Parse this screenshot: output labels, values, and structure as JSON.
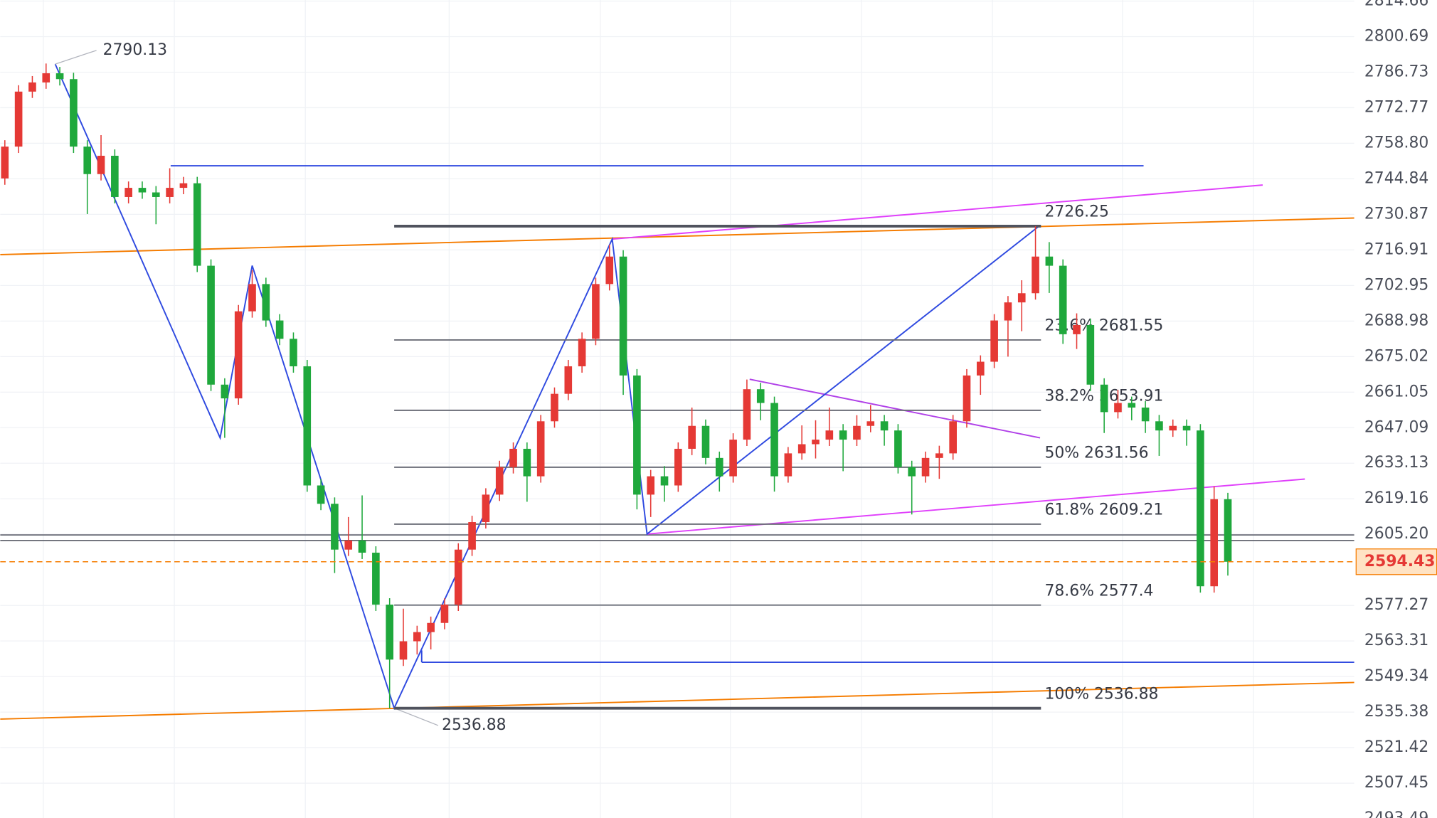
{
  "chart_data": {
    "type": "candlestick",
    "ylim": [
      2493.78,
      2815.08
    ],
    "yticks": [
      2814.66,
      2800.69,
      2786.73,
      2772.77,
      {
        "value": 2758.8,
        "label": "2758.80"
      },
      2744.84,
      2730.87,
      2716.91,
      2702.95,
      2688.98,
      2675.02,
      2661.05,
      2647.09,
      2633.13,
      2619.16,
      {
        "value": 2605.2,
        "label": "2605.20"
      },
      2577.27,
      2563.31,
      2549.34,
      2535.38,
      2521.42,
      2507.45,
      2493.49
    ],
    "grid": true,
    "up_color": "#e53935",
    "down_color": "#1fa83c",
    "open": [
      2745.0,
      2757.5,
      2779.1,
      2782.7,
      2786.3,
      2784.0,
      2757.5,
      2746.7,
      2753.9,
      2737.7,
      2741.3,
      2739.5,
      2737.7,
      2741.3,
      2743.1,
      2710.7,
      2664.0,
      2658.6,
      2692.8,
      2703.5,
      2689.2,
      2682.0,
      2671.2,
      2624.4,
      2617.2,
      2599.2,
      2602.8,
      2598.0,
      2577.6,
      2556.0,
      2563.2,
      2566.8,
      2570.4,
      2577.6,
      2599.2,
      2610.0,
      2620.8,
      2631.6,
      2638.8,
      2628.0,
      2649.6,
      2660.4,
      2671.2,
      2682.0,
      2703.5,
      2714.3,
      2667.6,
      2620.8,
      2628.0,
      2624.4,
      2638.8,
      2647.8,
      2635.2,
      2628.0,
      2642.4,
      2662.2,
      2656.8,
      2628.0,
      2637.0,
      2640.6,
      2642.4,
      2646.0,
      2642.4,
      2647.8,
      2649.6,
      2646.0,
      2631.6,
      2628.0,
      2635.2,
      2637.0,
      2649.6,
      2667.6,
      2673.0,
      2689.2,
      2696.3,
      2699.9,
      2714.3,
      2710.7,
      2683.8,
      2687.4,
      2664.0,
      2653.2,
      2656.8,
      2655.0,
      2649.6,
      2646.0,
      2647.8,
      2646.0,
      2584.8,
      2619.0
    ],
    "high": [
      2760.0,
      2781.6,
      2785.2,
      2790.13,
      2788.8,
      2786.5,
      2760.0,
      2762.0,
      2756.4,
      2743.8,
      2743.8,
      2742.0,
      2749.0,
      2745.6,
      2745.6,
      2713.2,
      2666.5,
      2695.3,
      2709.0,
      2706.0,
      2691.7,
      2684.5,
      2673.7,
      2626.9,
      2619.7,
      2612.0,
      2620.5,
      2600.5,
      2580.1,
      2576.0,
      2569.3,
      2572.9,
      2580.1,
      2601.7,
      2612.5,
      2623.3,
      2634.1,
      2641.3,
      2641.3,
      2652.1,
      2662.9,
      2673.7,
      2684.5,
      2706.0,
      2719.0,
      2716.8,
      2670.1,
      2630.5,
      2632.0,
      2641.3,
      2655.0,
      2650.3,
      2637.7,
      2644.9,
      2666.0,
      2664.7,
      2659.3,
      2639.5,
      2648.0,
      2650.0,
      2655.0,
      2648.5,
      2652.0,
      2656.0,
      2652.1,
      2648.5,
      2634.1,
      2637.7,
      2640.0,
      2652.1,
      2670.1,
      2675.5,
      2691.7,
      2698.8,
      2705.0,
      2726.25,
      2720.0,
      2713.2,
      2692.0,
      2689.9,
      2666.5,
      2662.0,
      2659.3,
      2657.5,
      2652.1,
      2650.3,
      2650.3,
      2648.5,
      2624.0,
      2621.5
    ],
    "low": [
      2742.5,
      2755.0,
      2776.6,
      2780.2,
      2781.5,
      2755.0,
      2731.0,
      2744.2,
      2735.2,
      2735.2,
      2737.0,
      2727.0,
      2735.2,
      2738.8,
      2708.2,
      2661.5,
      2643.1,
      2656.1,
      2690.3,
      2686.7,
      2679.5,
      2668.7,
      2621.9,
      2614.7,
      2590.0,
      2596.7,
      2595.5,
      2575.1,
      2536.88,
      2553.5,
      2558.0,
      2560.0,
      2567.9,
      2575.1,
      2596.7,
      2607.5,
      2618.3,
      2629.1,
      2618.0,
      2625.5,
      2647.1,
      2657.9,
      2668.7,
      2679.5,
      2701.0,
      2660.0,
      2615.0,
      2612.0,
      2618.0,
      2621.9,
      2636.3,
      2632.7,
      2622.0,
      2625.5,
      2639.9,
      2650.0,
      2622.0,
      2625.5,
      2634.5,
      2635.0,
      2639.9,
      2630.0,
      2639.9,
      2645.3,
      2640.0,
      2629.1,
      2613.0,
      2625.5,
      2627.0,
      2634.5,
      2647.1,
      2660.0,
      2670.5,
      2675.0,
      2685.0,
      2697.4,
      2700.0,
      2680.0,
      2678.0,
      2661.5,
      2645.0,
      2650.7,
      2650.0,
      2645.0,
      2636.0,
      2643.5,
      2640.0,
      2582.3,
      2582.3,
      2589.0
    ],
    "close": [
      2757.5,
      2779.1,
      2782.7,
      2786.3,
      2784.0,
      2757.5,
      2746.7,
      2753.9,
      2737.7,
      2741.3,
      2739.5,
      2737.7,
      2741.3,
      2743.1,
      2710.7,
      2664.0,
      2658.6,
      2692.8,
      2703.5,
      2689.2,
      2682.0,
      2671.2,
      2624.4,
      2617.2,
      2599.2,
      2602.8,
      2598.0,
      2577.6,
      2556.0,
      2563.2,
      2566.8,
      2570.4,
      2577.6,
      2599.2,
      2610.0,
      2620.8,
      2631.6,
      2638.8,
      2628.0,
      2649.6,
      2660.4,
      2671.2,
      2682.0,
      2703.5,
      2714.3,
      2667.6,
      2620.8,
      2628.0,
      2624.4,
      2638.8,
      2647.8,
      2635.2,
      2628.0,
      2642.4,
      2662.2,
      2656.8,
      2628.0,
      2637.0,
      2640.6,
      2642.4,
      2646.0,
      2642.4,
      2647.8,
      2649.6,
      2646.0,
      2631.6,
      2628.0,
      2635.2,
      2637.0,
      2649.6,
      2667.6,
      2673.0,
      2689.2,
      2696.3,
      2699.9,
      2714.3,
      2710.7,
      2683.8,
      2687.4,
      2664.0,
      2653.2,
      2656.8,
      2655.0,
      2649.6,
      2646.0,
      2647.8,
      2646.0,
      2584.8,
      2619.0,
      2594.43
    ],
    "fib_levels": [
      {
        "value": 2726.25,
        "label": "2726.25"
      },
      {
        "value": 2681.55,
        "label": "23.6% 2681.55"
      },
      {
        "value": 2653.91,
        "label": "38.2% 2653.91"
      },
      {
        "value": 2631.56,
        "label": "50% 2631.56"
      },
      {
        "value": 2609.21,
        "label": "61.8% 2609.21"
      },
      {
        "value": 2577.4,
        "label": "78.6% 2577.4"
      },
      {
        "value": 2536.88,
        "label": "100% 2536.88"
      }
    ],
    "pivot_high": 2790.13,
    "pivot_low": 2536.88,
    "last_price": 2594.43
  }
}
